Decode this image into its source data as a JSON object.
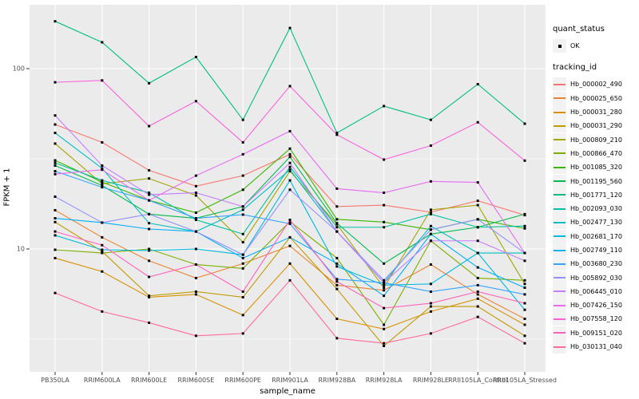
{
  "figure": {
    "panel_background": "#EBEBEB",
    "grid_color": "#FFFFFF",
    "tick_color": "#333333",
    "tick_label_color": "#4D4D4D",
    "point_color": "#000000",
    "legend_key_background": "#F2F2F2"
  },
  "legend": {
    "quant_status_title": "quant_status",
    "quant_status_items": [
      {
        "label": "OK"
      }
    ],
    "tracking_id_title": "tracking_id"
  },
  "chart_data": {
    "type": "line",
    "title": "",
    "xlabel": "sample_name",
    "ylabel": "FPKM + 1",
    "y_scale": "log10",
    "y_ticks": [
      100,
      10
    ],
    "y_minor_ticks": [
      31.623,
      3.1623
    ],
    "ylim_approx": [
      2.1,
      226
    ],
    "grid": true,
    "legend_position": "right",
    "point_shape": "filled-square",
    "categories": [
      "PB350LA",
      "RRIM600LA",
      "RRIM600LE",
      "RRIM600SE",
      "RRIM600PE",
      "RRIM901LA",
      "RRIM928BA",
      "RRIM928LA",
      "RRIM928LE",
      "RRII105LA_Control",
      "RRII105LA_Stressed"
    ],
    "series": [
      {
        "name": "Hb_000002_490",
        "color": "#F8766D",
        "values": [
          49,
          39,
          27.3,
          22.3,
          25.5,
          33.5,
          17.2,
          17.5,
          16.0,
          18.5,
          15.4
        ]
      },
      {
        "name": "Hb_000025_650",
        "color": "#EA8331",
        "values": [
          16.4,
          11.6,
          8.6,
          6.9,
          8.3,
          10.4,
          6.3,
          5.9,
          8.2,
          5.6,
          4.1
        ]
      },
      {
        "name": "Hb_000031_280",
        "color": "#D89000",
        "values": [
          8.9,
          7.5,
          5.4,
          5.6,
          4.3,
          8.3,
          4.1,
          3.6,
          4.5,
          5.3,
          3.8
        ]
      },
      {
        "name": "Hb_000031_290",
        "color": "#C09B00",
        "values": [
          14.1,
          9.7,
          5.5,
          5.8,
          5.4,
          11.6,
          6.0,
          2.9,
          4.8,
          4.8,
          3.3
        ]
      },
      {
        "name": "Hb_000809_210",
        "color": "#A3A500",
        "values": [
          38.4,
          23.0,
          24.6,
          19.8,
          10.9,
          27.0,
          13.7,
          6.1,
          16.5,
          17.5,
          6.4
        ]
      },
      {
        "name": "Hb_000866_470",
        "color": "#7CAE00",
        "values": [
          9.9,
          9.5,
          10.0,
          8.2,
          7.8,
          14.2,
          8.9,
          3.8,
          11.1,
          6.9,
          6.7
        ]
      },
      {
        "name": "Hb_001085_320",
        "color": "#39B600",
        "values": [
          31.0,
          23.5,
          18.6,
          15.9,
          21.3,
          36.0,
          14.6,
          14.1,
          12.8,
          14.6,
          13.0
        ]
      },
      {
        "name": "Hb_001195_560",
        "color": "#00BB4E",
        "values": [
          29.0,
          22.5,
          15.6,
          14.8,
          17.2,
          32.4,
          13.9,
          8.3,
          12.1,
          13.2,
          15.6
        ]
      },
      {
        "name": "Hb_001771_120",
        "color": "#00BF7D",
        "values": [
          183,
          140,
          83,
          116,
          52,
          168,
          44,
          62,
          52,
          82,
          49.5
        ]
      },
      {
        "name": "Hb_002093_030",
        "color": "#00C1A3",
        "values": [
          30.0,
          24.0,
          20.5,
          14.5,
          12.1,
          28.5,
          13.2,
          13.2,
          15.6,
          13.2,
          13.4
        ]
      },
      {
        "name": "Hb_002477_130",
        "color": "#00BFC4",
        "values": [
          44.0,
          28.0,
          13.9,
          12.5,
          16.5,
          27.5,
          12.5,
          6.5,
          13.4,
          9.5,
          9.5
        ]
      },
      {
        "name": "Hb_002681_170",
        "color": "#00BAE0",
        "values": [
          11.9,
          9.9,
          9.8,
          10.0,
          9.3,
          24.0,
          8.0,
          6.3,
          6.4,
          9.5,
          4.6
        ]
      },
      {
        "name": "Hb_002749_110",
        "color": "#00B0F6",
        "values": [
          14.8,
          14.0,
          12.9,
          12.5,
          8.9,
          11.6,
          8.3,
          5.5,
          12.1,
          7.9,
          6.1
        ]
      },
      {
        "name": "Hb_003680_230",
        "color": "#35A2FF",
        "values": [
          27.0,
          22.0,
          18.6,
          14.8,
          15.5,
          13.8,
          6.8,
          6.5,
          5.8,
          6.3,
          5.6
        ]
      },
      {
        "name": "Hb_005892_030",
        "color": "#9590FF",
        "values": [
          19.5,
          14.0,
          15.6,
          12.5,
          9.3,
          21.3,
          12.5,
          6.7,
          12.8,
          14.6,
          9.5
        ]
      },
      {
        "name": "Hb_006445_010",
        "color": "#C77CFF",
        "values": [
          55.0,
          29.0,
          20.0,
          20.5,
          17.2,
          30.0,
          12.5,
          6.5,
          11.1,
          11.1,
          8.6
        ]
      },
      {
        "name": "Hb_007426_150",
        "color": "#E76BF3",
        "values": [
          26.0,
          27.5,
          18.6,
          25.5,
          33.5,
          45.0,
          21.6,
          20.5,
          23.7,
          23.4,
          9.5
        ]
      },
      {
        "name": "Hb_007558_120",
        "color": "#FA62DB",
        "values": [
          84,
          86,
          48,
          66,
          39,
          80,
          43,
          31.3,
          37.4,
          50.4,
          30.9
        ]
      },
      {
        "name": "Hb_009151_020",
        "color": "#FF62BC",
        "values": [
          12.5,
          10.5,
          7.0,
          8.2,
          5.8,
          14.5,
          6.6,
          4.7,
          5.0,
          5.8,
          5.0
        ]
      },
      {
        "name": "Hb_030131_040",
        "color": "#FF6A98",
        "values": [
          5.7,
          4.5,
          3.9,
          3.3,
          3.4,
          6.7,
          3.2,
          3.0,
          3.4,
          4.2,
          3.0
        ]
      }
    ]
  }
}
